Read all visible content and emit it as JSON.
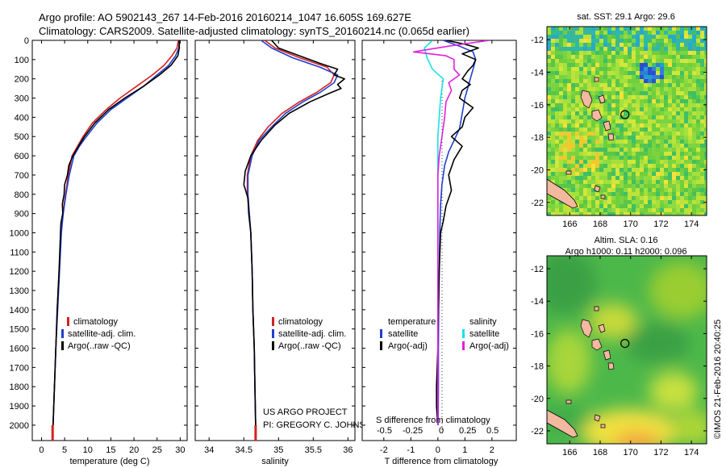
{
  "header": {
    "line1": "Argo profile: AO 5902143_267 14-Feb-2016 20160214_1047 16.605S 169.627E",
    "line2": "Climatology: CARS2009. Satellite-adjusted climatology: synTS_20160214.nc (0.065d earlier)"
  },
  "colors": {
    "climatology": "#d42020",
    "satellite": "#1f3fd0",
    "argo": "#000000",
    "cyan": "#18e0e8",
    "magenta": "#e020e0"
  },
  "chart_data": [
    {
      "type": "line",
      "title": "",
      "xlabel": "temperature (deg C)",
      "ylabel": "",
      "xlim": [
        -2,
        31.5
      ],
      "ylim": [
        2080,
        0
      ],
      "xticks": [
        0,
        5,
        10,
        15,
        20,
        25,
        30
      ],
      "yticks": [
        0,
        100,
        200,
        300,
        400,
        500,
        600,
        700,
        800,
        900,
        1000,
        1100,
        1200,
        1300,
        1400,
        1500,
        1600,
        1700,
        1800,
        1900,
        2000
      ],
      "legend": [
        "climatology",
        "satellite-adj. clim.",
        "Argo(..raw -QC)"
      ],
      "series": [
        {
          "name": "climatology",
          "color": "#d42020",
          "points": [
            [
              29.6,
              0
            ],
            [
              29.3,
              40
            ],
            [
              28.2,
              80
            ],
            [
              26.5,
              130
            ],
            [
              24.0,
              180
            ],
            [
              20.5,
              240
            ],
            [
              17.0,
              300
            ],
            [
              14.0,
              360
            ],
            [
              11.0,
              430
            ],
            [
              9.0,
              500
            ],
            [
              7.8,
              550
            ],
            [
              6.6,
              600
            ],
            [
              5.8,
              700
            ],
            [
              5.2,
              800
            ],
            [
              4.6,
              900
            ],
            [
              4.2,
              1000
            ],
            [
              3.8,
              1200
            ],
            [
              3.4,
              1400
            ],
            [
              3.1,
              1600
            ],
            [
              2.8,
              1800
            ],
            [
              2.5,
              2000
            ],
            [
              2.4,
              2070
            ]
          ]
        },
        {
          "name": "satellite-adj. clim.",
          "color": "#1f3fd0",
          "points": [
            [
              29.8,
              0
            ],
            [
              29.7,
              40
            ],
            [
              29.0,
              80
            ],
            [
              27.5,
              130
            ],
            [
              25.0,
              180
            ],
            [
              22.0,
              240
            ],
            [
              18.5,
              300
            ],
            [
              15.0,
              360
            ],
            [
              12.0,
              430
            ],
            [
              9.7,
              500
            ],
            [
              8.2,
              550
            ],
            [
              7.0,
              600
            ],
            [
              6.0,
              700
            ],
            [
              5.3,
              800
            ],
            [
              4.7,
              900
            ],
            [
              4.3,
              1000
            ],
            [
              3.9,
              1200
            ],
            [
              3.5,
              1400
            ],
            [
              3.1,
              1600
            ],
            [
              2.8,
              1800
            ],
            [
              2.5,
              2000
            ],
            [
              2.4,
              2060
            ]
          ]
        },
        {
          "name": "Argo(..raw -QC)",
          "color": "#000000",
          "points": [
            [
              29.8,
              0
            ],
            [
              29.8,
              40
            ],
            [
              29.5,
              80
            ],
            [
              28.0,
              130
            ],
            [
              25.5,
              180
            ],
            [
              22.0,
              240
            ],
            [
              18.0,
              300
            ],
            [
              14.5,
              360
            ],
            [
              11.5,
              430
            ],
            [
              9.3,
              500
            ],
            [
              8.0,
              550
            ],
            [
              6.8,
              600
            ],
            [
              5.9,
              650
            ],
            [
              5.6,
              700
            ],
            [
              5.0,
              750
            ],
            [
              4.9,
              800
            ],
            [
              4.5,
              850
            ],
            [
              4.6,
              900
            ],
            [
              4.2,
              950
            ],
            [
              4.1,
              1000
            ],
            [
              3.8,
              1200
            ],
            [
              3.4,
              1400
            ],
            [
              3.1,
              1600
            ],
            [
              2.8,
              1800
            ],
            [
              2.5,
              2000
            ],
            [
              2.4,
              2050
            ]
          ]
        }
      ]
    },
    {
      "type": "line",
      "title": "",
      "xlabel": "salinity",
      "ylabel": "",
      "xlim": [
        33.8,
        36.1
      ],
      "ylim": [
        2080,
        0
      ],
      "xticks": [
        34,
        34.5,
        35,
        35.5,
        36
      ],
      "legend": [
        "climatology",
        "satellite-adj. clim.",
        "Argo(..raw -QC)"
      ],
      "series": [
        {
          "name": "climatology",
          "color": "#d42020",
          "points": [
            [
              34.8,
              0
            ],
            [
              34.95,
              40
            ],
            [
              35.3,
              90
            ],
            [
              35.7,
              140
            ],
            [
              35.8,
              180
            ],
            [
              35.75,
              220
            ],
            [
              35.55,
              270
            ],
            [
              35.3,
              320
            ],
            [
              35.05,
              380
            ],
            [
              34.85,
              450
            ],
            [
              34.7,
              520
            ],
            [
              34.6,
              600
            ],
            [
              34.55,
              700
            ],
            [
              34.55,
              800
            ],
            [
              34.58,
              900
            ],
            [
              34.6,
              1000
            ],
            [
              34.62,
              1200
            ],
            [
              34.63,
              1400
            ],
            [
              34.65,
              1600
            ],
            [
              34.66,
              1800
            ],
            [
              34.67,
              2000
            ],
            [
              34.67,
              2070
            ]
          ]
        },
        {
          "name": "satellite-adj. clim.",
          "color": "#1f3fd0",
          "points": [
            [
              34.75,
              0
            ],
            [
              34.9,
              40
            ],
            [
              35.2,
              90
            ],
            [
              35.6,
              140
            ],
            [
              35.85,
              180
            ],
            [
              35.8,
              220
            ],
            [
              35.6,
              270
            ],
            [
              35.35,
              320
            ],
            [
              35.1,
              380
            ],
            [
              34.9,
              450
            ],
            [
              34.72,
              520
            ],
            [
              34.62,
              600
            ],
            [
              34.56,
              700
            ],
            [
              34.56,
              800
            ],
            [
              34.58,
              900
            ],
            [
              34.6,
              1000
            ],
            [
              34.62,
              1200
            ],
            [
              34.63,
              1400
            ],
            [
              34.65,
              1600
            ],
            [
              34.66,
              1800
            ],
            [
              34.67,
              2000
            ],
            [
              34.67,
              2060
            ]
          ]
        },
        {
          "name": "Argo(..raw -QC)",
          "color": "#000000",
          "points": [
            [
              34.9,
              0
            ],
            [
              35.0,
              40
            ],
            [
              35.3,
              80
            ],
            [
              35.6,
              120
            ],
            [
              35.85,
              150
            ],
            [
              35.8,
              180
            ],
            [
              35.95,
              200
            ],
            [
              35.85,
              230
            ],
            [
              35.9,
              250
            ],
            [
              35.7,
              280
            ],
            [
              35.45,
              320
            ],
            [
              35.15,
              380
            ],
            [
              34.95,
              440
            ],
            [
              34.75,
              520
            ],
            [
              34.6,
              600
            ],
            [
              34.52,
              680
            ],
            [
              34.5,
              750
            ],
            [
              34.56,
              820
            ],
            [
              34.57,
              900
            ],
            [
              34.6,
              1000
            ],
            [
              34.62,
              1200
            ],
            [
              34.63,
              1400
            ],
            [
              34.65,
              1600
            ],
            [
              34.66,
              1800
            ],
            [
              34.67,
              2000
            ],
            [
              34.67,
              2050
            ]
          ]
        }
      ]
    },
    {
      "type": "line",
      "title": "",
      "xlabel": "T difference from climatology",
      "xlabel2": "S difference from climatology",
      "ylabel": "",
      "xlim": [
        -2.8,
        2.9
      ],
      "ylim": [
        2080,
        0
      ],
      "xticks": [
        -2,
        -1,
        0,
        1,
        2
      ],
      "xticks_top": [
        "-0.5",
        "-0.25",
        "0",
        "0.25",
        "0.5"
      ],
      "xticks_top_pos": [
        -2,
        -1,
        0,
        1,
        2
      ],
      "legend_header": [
        "temperature",
        "salinity"
      ],
      "legend": [
        "satellite",
        "Argo(-adj)",
        "satellite",
        "Argo(-adj)"
      ],
      "series": [
        {
          "name": "satellite",
          "group": "temperature",
          "color": "#1f3fd0",
          "points": [
            [
              0.2,
              0
            ],
            [
              0.8,
              30
            ],
            [
              1.3,
              60
            ],
            [
              1.4,
              100
            ],
            [
              1.3,
              150
            ],
            [
              1.2,
              200
            ],
            [
              1.1,
              250
            ],
            [
              1.0,
              300
            ],
            [
              0.9,
              380
            ],
            [
              0.8,
              460
            ],
            [
              0.6,
              520
            ],
            [
              0.4,
              580
            ],
            [
              0.25,
              650
            ],
            [
              0.15,
              750
            ],
            [
              0.1,
              850
            ],
            [
              0.07,
              1000
            ],
            [
              0.05,
              1200
            ],
            [
              0.03,
              1400
            ],
            [
              0.02,
              1600
            ],
            [
              0.02,
              1800
            ],
            [
              0.01,
              2000
            ]
          ]
        },
        {
          "name": "Argo(-adj)",
          "group": "temperature",
          "color": "#000000",
          "points": [
            [
              0.3,
              0
            ],
            [
              1.0,
              20
            ],
            [
              1.5,
              40
            ],
            [
              0.9,
              70
            ],
            [
              1.4,
              100
            ],
            [
              1.3,
              130
            ],
            [
              1.1,
              160
            ],
            [
              0.9,
              200
            ],
            [
              1.2,
              230
            ],
            [
              0.9,
              260
            ],
            [
              0.8,
              300
            ],
            [
              1.3,
              350
            ],
            [
              1.0,
              400
            ],
            [
              0.9,
              450
            ],
            [
              0.5,
              500
            ],
            [
              0.9,
              550
            ],
            [
              0.6,
              620
            ],
            [
              0.4,
              700
            ],
            [
              0.5,
              780
            ],
            [
              0.3,
              860
            ],
            [
              0.2,
              940
            ],
            [
              0.1,
              1000
            ],
            [
              0.05,
              1200
            ],
            [
              0.02,
              1400
            ],
            [
              0.0,
              1600
            ],
            [
              -0.05,
              1800
            ],
            [
              -0.05,
              1900
            ],
            [
              0.0,
              2000
            ]
          ]
        },
        {
          "name": "satellite",
          "group": "salinity",
          "color": "#18e0e8",
          "points": [
            [
              -0.2,
              0
            ],
            [
              -0.5,
              40
            ],
            [
              -0.4,
              90
            ],
            [
              -0.2,
              150
            ],
            [
              0.2,
              200
            ],
            [
              0.1,
              300
            ],
            [
              0.05,
              400
            ],
            [
              0.0,
              500
            ],
            [
              0.0,
              700
            ],
            [
              0.0,
              900
            ],
            [
              0.0,
              1100
            ],
            [
              0.0,
              1400
            ],
            [
              0.0,
              1700
            ],
            [
              0.0,
              2000
            ]
          ]
        },
        {
          "name": "Argo(-adj)",
          "group": "salinity",
          "color": "#e020e0",
          "points": [
            [
              1.9,
              0
            ],
            [
              0.4,
              30
            ],
            [
              -0.9,
              60
            ],
            [
              0.3,
              80
            ],
            [
              0.6,
              100
            ],
            [
              0.6,
              150
            ],
            [
              0.8,
              180
            ],
            [
              0.4,
              220
            ],
            [
              0.5,
              260
            ],
            [
              0.3,
              320
            ],
            [
              0.25,
              400
            ],
            [
              0.15,
              500
            ],
            [
              0.05,
              600
            ],
            [
              0.0,
              700
            ],
            [
              0.0,
              900
            ],
            [
              0.0,
              1200
            ],
            [
              0.0,
              1500
            ],
            [
              0.0,
              1800
            ],
            [
              0.0,
              2000
            ]
          ]
        }
      ]
    },
    {
      "type": "heatmap",
      "title": "sat. SST: 29.1  Argo: 29.6",
      "xticks": [
        "166",
        "168",
        "170",
        "172",
        "174"
      ],
      "yticks": [
        "-12",
        "-14",
        "-16",
        "-18",
        "-20",
        "-22"
      ],
      "xlim": [
        164.5,
        175
      ],
      "ylim": [
        -22.8,
        -11.2
      ],
      "argo_position": [
        169.627,
        -16.605
      ]
    },
    {
      "type": "heatmap",
      "title_line1": "Altim. SLA: 0.16",
      "title_line2": "Argo h1000: 0.11 h2000: 0.096",
      "xticks": [
        "166",
        "168",
        "170",
        "172",
        "174"
      ],
      "yticks": [
        "-12",
        "-14",
        "-16",
        "-18",
        "-20",
        "-22"
      ],
      "xlim": [
        164.5,
        175
      ],
      "ylim": [
        -22.8,
        -11.2
      ],
      "argo_position": [
        169.627,
        -16.605
      ]
    }
  ],
  "credits": {
    "project": "US ARGO PROJECT",
    "pi": "PI: GREGORY C. JOHNSON",
    "watermark": "©IMOS 21-Feb-2016 20:40:25"
  }
}
